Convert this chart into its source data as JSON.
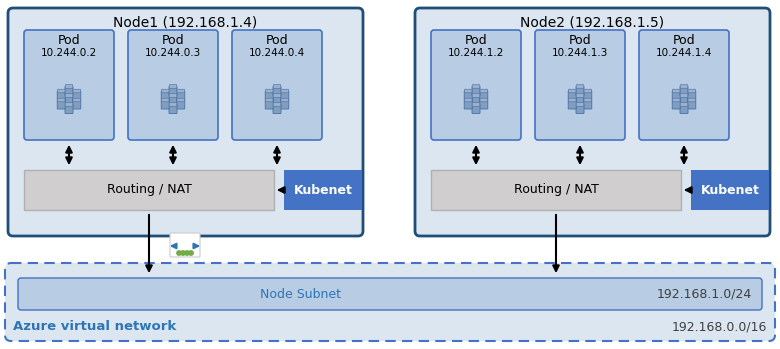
{
  "fig_width": 7.8,
  "fig_height": 3.49,
  "bg_color": "#ffffff",
  "node1_label": "Node1 (192.168.1.4)",
  "node2_label": "Node2 (192.168.1.5)",
  "node_bg": "#dce6f1",
  "node_border": "#1f4e79",
  "pod_bg": "#b8cce4",
  "pod_border": "#4472c4",
  "node1_pods": [
    "Pod",
    "Pod",
    "Pod"
  ],
  "node1_ips": [
    "10.244.0.2",
    "10.244.0.3",
    "10.244.0.4"
  ],
  "node2_pods": [
    "Pod",
    "Pod",
    "Pod"
  ],
  "node2_ips": [
    "10.244.1.2",
    "10.244.1.3",
    "10.244.1.4"
  ],
  "routing_bg": "#d0cece",
  "routing_label": "Routing / NAT",
  "kubenet_bg": "#4472c4",
  "kubenet_fg": "#ffffff",
  "kubenet_label": "Kubenet",
  "subnet_bg": "#b8cce4",
  "subnet_border": "#4472c4",
  "subnet_label": "Node Subnet",
  "subnet_ip": "192.168.1.0/24",
  "vnet_bg": "#dce6f1",
  "vnet_border": "#4472c4",
  "vnet_label": "Azure virtual network",
  "vnet_ip": "192.168.0.0/16",
  "vnet_label_color": "#2e75b6"
}
